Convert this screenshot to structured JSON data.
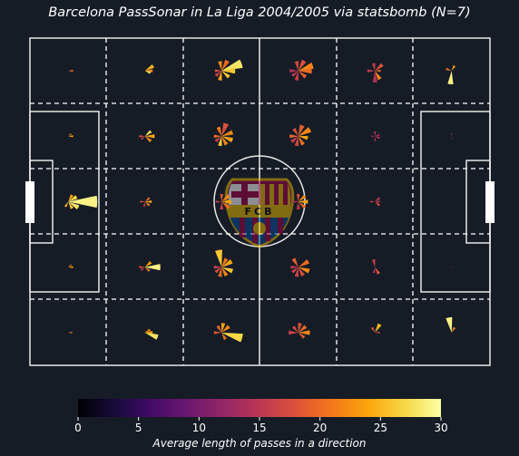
{
  "title": "Barcelona PassSonar in La Liga 2004/2005 via statsbomb (N=7)",
  "logo_text": "FCB",
  "colors": {
    "background": "#161c26",
    "pitch_lines": "#e6e6e6",
    "grid_dashes": "#ffffff"
  },
  "chart_data": {
    "type": "pass-sonar",
    "title": "Barcelona PassSonar in La Liga 2004/2005 via statsbomb (N=7)",
    "colormap": "inferno",
    "grid": {
      "columns": 6,
      "rows": 5
    },
    "colorbar": {
      "label": "Average length of passes in a direction",
      "range": [
        0,
        30
      ],
      "ticks": [
        0,
        5,
        10,
        15,
        20,
        25,
        30
      ]
    },
    "cells": [
      {
        "col": 0,
        "row": 0,
        "directions": [
          {
            "angle": 0,
            "length": 5,
            "avg": 20
          }
        ]
      },
      {
        "col": 1,
        "row": 0,
        "directions": [
          {
            "angle": -30,
            "length": 10,
            "avg": 25
          },
          {
            "angle": 0,
            "length": 8,
            "avg": 22
          },
          {
            "angle": 20,
            "length": 6,
            "avg": 28
          }
        ]
      },
      {
        "col": 2,
        "row": 0,
        "directions": [
          {
            "angle": -20,
            "length": 22,
            "avg": 28
          },
          {
            "angle": 0,
            "length": 14,
            "avg": 26
          },
          {
            "angle": -60,
            "length": 12,
            "avg": 20
          },
          {
            "angle": -100,
            "length": 10,
            "avg": 22
          },
          {
            "angle": 100,
            "length": 10,
            "avg": 24
          },
          {
            "angle": 140,
            "length": 8,
            "avg": 16
          },
          {
            "angle": 40,
            "length": 10,
            "avg": 26
          },
          {
            "angle": 180,
            "length": 7,
            "avg": 18
          }
        ]
      },
      {
        "col": 3,
        "row": 0,
        "directions": [
          {
            "angle": -20,
            "length": 16,
            "avg": 22
          },
          {
            "angle": 0,
            "length": 14,
            "avg": 20
          },
          {
            "angle": -60,
            "length": 12,
            "avg": 18
          },
          {
            "angle": -100,
            "length": 10,
            "avg": 17
          },
          {
            "angle": 100,
            "length": 10,
            "avg": 16
          },
          {
            "angle": 140,
            "length": 8,
            "avg": 15
          },
          {
            "angle": 40,
            "length": 10,
            "avg": 19
          },
          {
            "angle": 180,
            "length": 9,
            "avg": 14
          }
        ]
      },
      {
        "col": 4,
        "row": 0,
        "directions": [
          {
            "angle": -40,
            "length": 10,
            "avg": 18
          },
          {
            "angle": 60,
            "length": 10,
            "avg": 22
          },
          {
            "angle": -100,
            "length": 8,
            "avg": 16
          },
          {
            "angle": 90,
            "length": 12,
            "avg": 14
          },
          {
            "angle": 180,
            "length": 8,
            "avg": 15
          },
          {
            "angle": 0,
            "length": 6,
            "avg": 20
          }
        ]
      },
      {
        "col": 5,
        "row": 0,
        "directions": [
          {
            "angle": 95,
            "length": 14,
            "avg": 29
          },
          {
            "angle": -60,
            "length": 6,
            "avg": 24
          },
          {
            "angle": 200,
            "length": 6,
            "avg": 20
          }
        ]
      },
      {
        "col": 0,
        "row": 1,
        "directions": [
          {
            "angle": 0,
            "length": 5,
            "avg": 24
          },
          {
            "angle": -40,
            "length": 4,
            "avg": 20
          }
        ]
      },
      {
        "col": 1,
        "row": 1,
        "directions": [
          {
            "angle": 0,
            "length": 10,
            "avg": 24
          },
          {
            "angle": -40,
            "length": 8,
            "avg": 28
          },
          {
            "angle": 40,
            "length": 8,
            "avg": 22
          },
          {
            "angle": 180,
            "length": 6,
            "avg": 18
          },
          {
            "angle": 140,
            "length": 5,
            "avg": 16
          }
        ]
      },
      {
        "col": 2,
        "row": 1,
        "directions": [
          {
            "angle": -20,
            "length": 12,
            "avg": 22
          },
          {
            "angle": -70,
            "length": 14,
            "avg": 18
          },
          {
            "angle": 20,
            "length": 12,
            "avg": 24
          },
          {
            "angle": 60,
            "length": 10,
            "avg": 22
          },
          {
            "angle": 100,
            "length": 10,
            "avg": 26
          },
          {
            "angle": 140,
            "length": 8,
            "avg": 16
          },
          {
            "angle": 180,
            "length": 8,
            "avg": 20
          },
          {
            "angle": -110,
            "length": 10,
            "avg": 21
          }
        ]
      },
      {
        "col": 3,
        "row": 1,
        "directions": [
          {
            "angle": -30,
            "length": 14,
            "avg": 22
          },
          {
            "angle": -70,
            "length": 12,
            "avg": 19
          },
          {
            "angle": 10,
            "length": 10,
            "avg": 24
          },
          {
            "angle": 60,
            "length": 10,
            "avg": 21
          },
          {
            "angle": 100,
            "length": 10,
            "avg": 17
          },
          {
            "angle": 140,
            "length": 9,
            "avg": 16
          },
          {
            "angle": 180,
            "length": 9,
            "avg": 20
          },
          {
            "angle": -120,
            "length": 9,
            "avg": 18
          }
        ]
      },
      {
        "col": 4,
        "row": 1,
        "directions": [
          {
            "angle": -20,
            "length": 5,
            "avg": 14
          },
          {
            "angle": 20,
            "length": 5,
            "avg": 16
          },
          {
            "angle": 90,
            "length": 5,
            "avg": 13
          },
          {
            "angle": -90,
            "length": 5,
            "avg": 15
          },
          {
            "angle": 180,
            "length": 4,
            "avg": 12
          }
        ]
      },
      {
        "col": 5,
        "row": 1,
        "directions": [
          {
            "angle": -90,
            "length": 3,
            "avg": 12
          },
          {
            "angle": 90,
            "length": 3,
            "avg": 10
          }
        ]
      },
      {
        "col": 0,
        "row": 2,
        "directions": [
          {
            "angle": 0,
            "length": 30,
            "avg": 29
          },
          {
            "angle": 30,
            "length": 12,
            "avg": 28
          },
          {
            "angle": -30,
            "length": 10,
            "avg": 27
          },
          {
            "angle": 60,
            "length": 8,
            "avg": 26
          },
          {
            "angle": -60,
            "length": 8,
            "avg": 24
          },
          {
            "angle": 120,
            "length": 6,
            "avg": 25
          }
        ]
      },
      {
        "col": 1,
        "row": 2,
        "directions": [
          {
            "angle": 0,
            "length": 7,
            "avg": 24
          },
          {
            "angle": 40,
            "length": 6,
            "avg": 22
          },
          {
            "angle": -40,
            "length": 6,
            "avg": 20
          },
          {
            "angle": 180,
            "length": 5,
            "avg": 18
          },
          {
            "angle": 100,
            "length": 5,
            "avg": 16
          }
        ]
      },
      {
        "col": 2,
        "row": 2,
        "directions": [
          {
            "angle": 0,
            "length": 10,
            "avg": 24
          },
          {
            "angle": -40,
            "length": 10,
            "avg": 22
          },
          {
            "angle": 40,
            "length": 10,
            "avg": 20
          },
          {
            "angle": -90,
            "length": 8,
            "avg": 18
          },
          {
            "angle": 90,
            "length": 8,
            "avg": 16
          },
          {
            "angle": 180,
            "length": 6,
            "avg": 14
          }
        ]
      },
      {
        "col": 3,
        "row": 2,
        "directions": [
          {
            "angle": 0,
            "length": 10,
            "avg": 24
          },
          {
            "angle": -40,
            "length": 9,
            "avg": 22
          },
          {
            "angle": 40,
            "length": 9,
            "avg": 20
          },
          {
            "angle": -90,
            "length": 8,
            "avg": 18
          },
          {
            "angle": 90,
            "length": 8,
            "avg": 16
          },
          {
            "angle": 180,
            "length": 6,
            "avg": 14
          }
        ]
      },
      {
        "col": 4,
        "row": 2,
        "directions": [
          {
            "angle": -40,
            "length": 6,
            "avg": 16
          },
          {
            "angle": 40,
            "length": 6,
            "avg": 18
          },
          {
            "angle": 180,
            "length": 5,
            "avg": 14
          },
          {
            "angle": 0,
            "length": 5,
            "avg": 15
          }
        ]
      },
      {
        "col": 5,
        "row": 2,
        "directions": []
      },
      {
        "col": 0,
        "row": 3,
        "directions": [
          {
            "angle": 0,
            "length": 5,
            "avg": 24
          },
          {
            "angle": -40,
            "length": 4,
            "avg": 20
          }
        ]
      },
      {
        "col": 1,
        "row": 3,
        "directions": [
          {
            "angle": 0,
            "length": 16,
            "avg": 29
          },
          {
            "angle": -40,
            "length": 8,
            "avg": 24
          },
          {
            "angle": 40,
            "length": 6,
            "avg": 22
          },
          {
            "angle": 180,
            "length": 6,
            "avg": 18
          },
          {
            "angle": 140,
            "length": 5,
            "avg": 16
          }
        ]
      },
      {
        "col": 2,
        "row": 3,
        "directions": [
          {
            "angle": -100,
            "length": 18,
            "avg": 26
          },
          {
            "angle": -30,
            "length": 12,
            "avg": 24
          },
          {
            "angle": 20,
            "length": 12,
            "avg": 26
          },
          {
            "angle": 60,
            "length": 10,
            "avg": 22
          },
          {
            "angle": 100,
            "length": 10,
            "avg": 20
          },
          {
            "angle": 140,
            "length": 8,
            "avg": 18
          },
          {
            "angle": 180,
            "length": 8,
            "avg": 16
          },
          {
            "angle": -60,
            "length": 10,
            "avg": 21
          }
        ]
      },
      {
        "col": 3,
        "row": 3,
        "directions": [
          {
            "angle": -30,
            "length": 12,
            "avg": 20
          },
          {
            "angle": 20,
            "length": 12,
            "avg": 22
          },
          {
            "angle": 60,
            "length": 10,
            "avg": 18
          },
          {
            "angle": 100,
            "length": 10,
            "avg": 16
          },
          {
            "angle": 140,
            "length": 8,
            "avg": 17
          },
          {
            "angle": -120,
            "length": 10,
            "avg": 19
          },
          {
            "angle": 180,
            "length": 8,
            "avg": 15
          }
        ]
      },
      {
        "col": 4,
        "row": 3,
        "directions": [
          {
            "angle": -100,
            "length": 8,
            "avg": 16
          },
          {
            "angle": 60,
            "length": 8,
            "avg": 18
          },
          {
            "angle": 100,
            "length": 6,
            "avg": 14
          }
        ]
      },
      {
        "col": 5,
        "row": 3,
        "directions": [
          {
            "angle": 0,
            "length": 2,
            "avg": 12
          }
        ]
      },
      {
        "col": 0,
        "row": 4,
        "directions": [
          {
            "angle": 0,
            "length": 4,
            "avg": 22
          }
        ]
      },
      {
        "col": 1,
        "row": 4,
        "directions": [
          {
            "angle": 20,
            "length": 14,
            "avg": 28
          },
          {
            "angle": 0,
            "length": 8,
            "avg": 24
          },
          {
            "angle": -30,
            "length": 6,
            "avg": 22
          }
        ]
      },
      {
        "col": 2,
        "row": 4,
        "directions": [
          {
            "angle": 15,
            "length": 22,
            "avg": 27
          },
          {
            "angle": -40,
            "length": 10,
            "avg": 22
          },
          {
            "angle": -80,
            "length": 10,
            "avg": 24
          },
          {
            "angle": -120,
            "length": 8,
            "avg": 20
          },
          {
            "angle": 180,
            "length": 8,
            "avg": 18
          },
          {
            "angle": 60,
            "length": 8,
            "avg": 21
          }
        ]
      },
      {
        "col": 3,
        "row": 4,
        "directions": [
          {
            "angle": -40,
            "length": 10,
            "avg": 20
          },
          {
            "angle": -80,
            "length": 10,
            "avg": 18
          },
          {
            "angle": 0,
            "length": 12,
            "avg": 22
          },
          {
            "angle": 180,
            "length": 10,
            "avg": 16
          },
          {
            "angle": -130,
            "length": 8,
            "avg": 17
          },
          {
            "angle": 40,
            "length": 8,
            "avg": 19
          }
        ]
      },
      {
        "col": 4,
        "row": 4,
        "directions": [
          {
            "angle": -60,
            "length": 10,
            "avg": 25
          },
          {
            "angle": -120,
            "length": 6,
            "avg": 18
          },
          {
            "angle": 0,
            "length": 5,
            "avg": 16
          }
        ]
      },
      {
        "col": 5,
        "row": 4,
        "directions": [
          {
            "angle": -100,
            "length": 16,
            "avg": 29
          },
          {
            "angle": -60,
            "length": 6,
            "avg": 22
          }
        ]
      }
    ]
  }
}
